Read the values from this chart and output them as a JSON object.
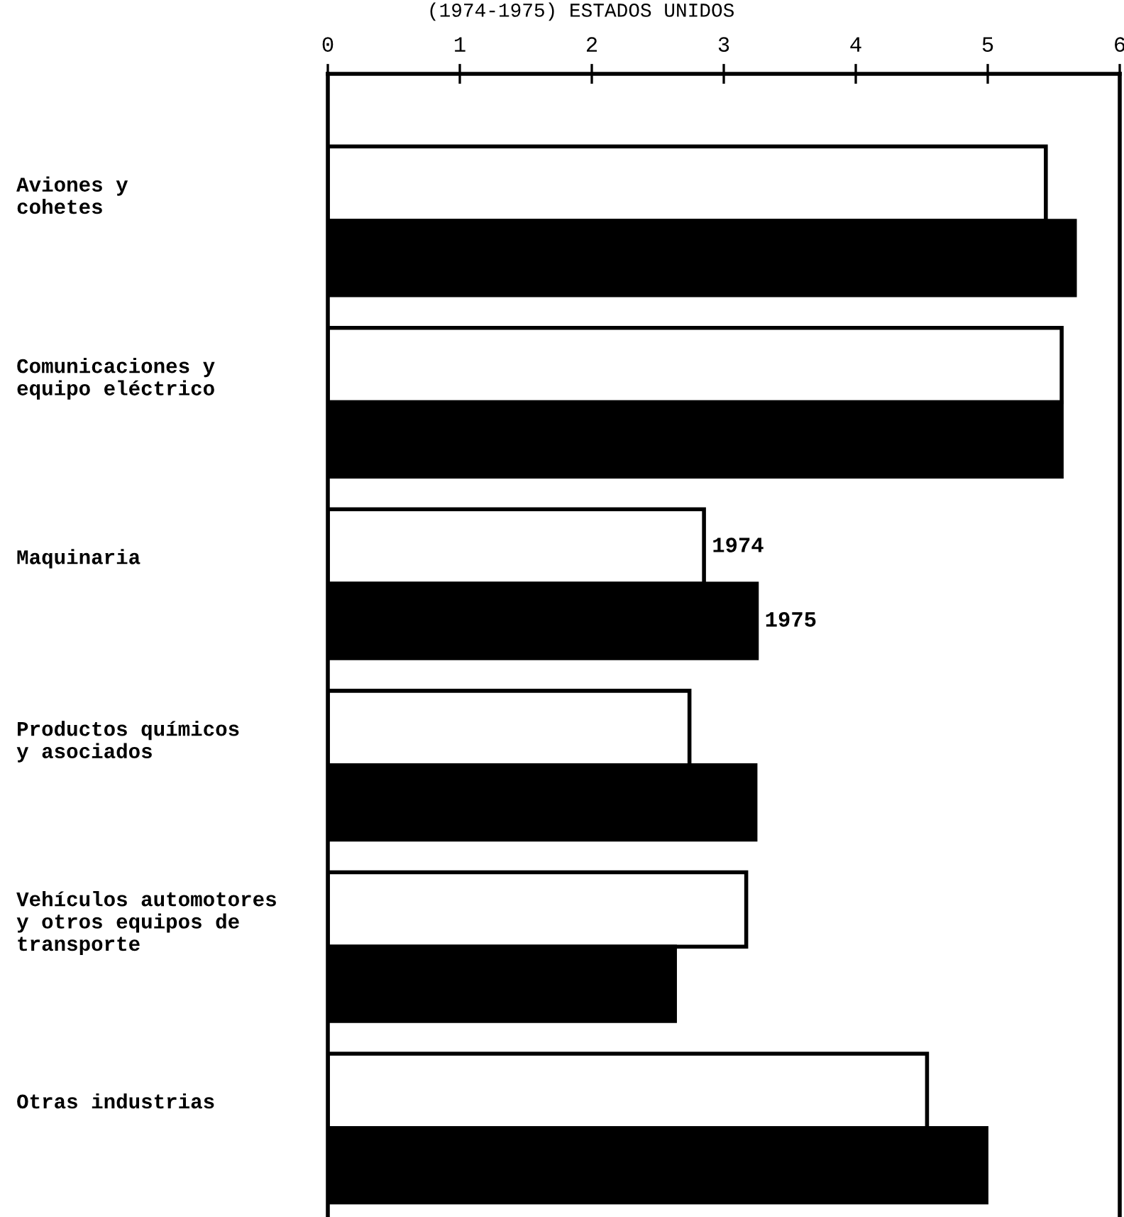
{
  "chart_data": {
    "type": "bar",
    "orientation": "horizontal",
    "title": "(1974-1975) ESTADOS UNIDOS",
    "categories": [
      "Aviones y\ncohetes",
      "Comunicaciones y\nequipo eléctrico",
      "Maquinaria",
      "Productos químicos\ny asociados",
      "Vehículos automotores\ny otros equipos de\ntransporte",
      "Otras industrias"
    ],
    "series": [
      {
        "name": "1974",
        "color": "#ffffff",
        "values": [
          5.44,
          5.56,
          2.85,
          2.74,
          3.17,
          4.54
        ]
      },
      {
        "name": "1975",
        "color": "#000000",
        "values": [
          5.66,
          5.56,
          3.25,
          3.24,
          2.63,
          4.99
        ]
      }
    ],
    "xlim": [
      0,
      6
    ],
    "xticks": [
      0,
      1,
      2,
      3,
      4,
      5,
      6
    ],
    "grid": false,
    "legend": false
  }
}
